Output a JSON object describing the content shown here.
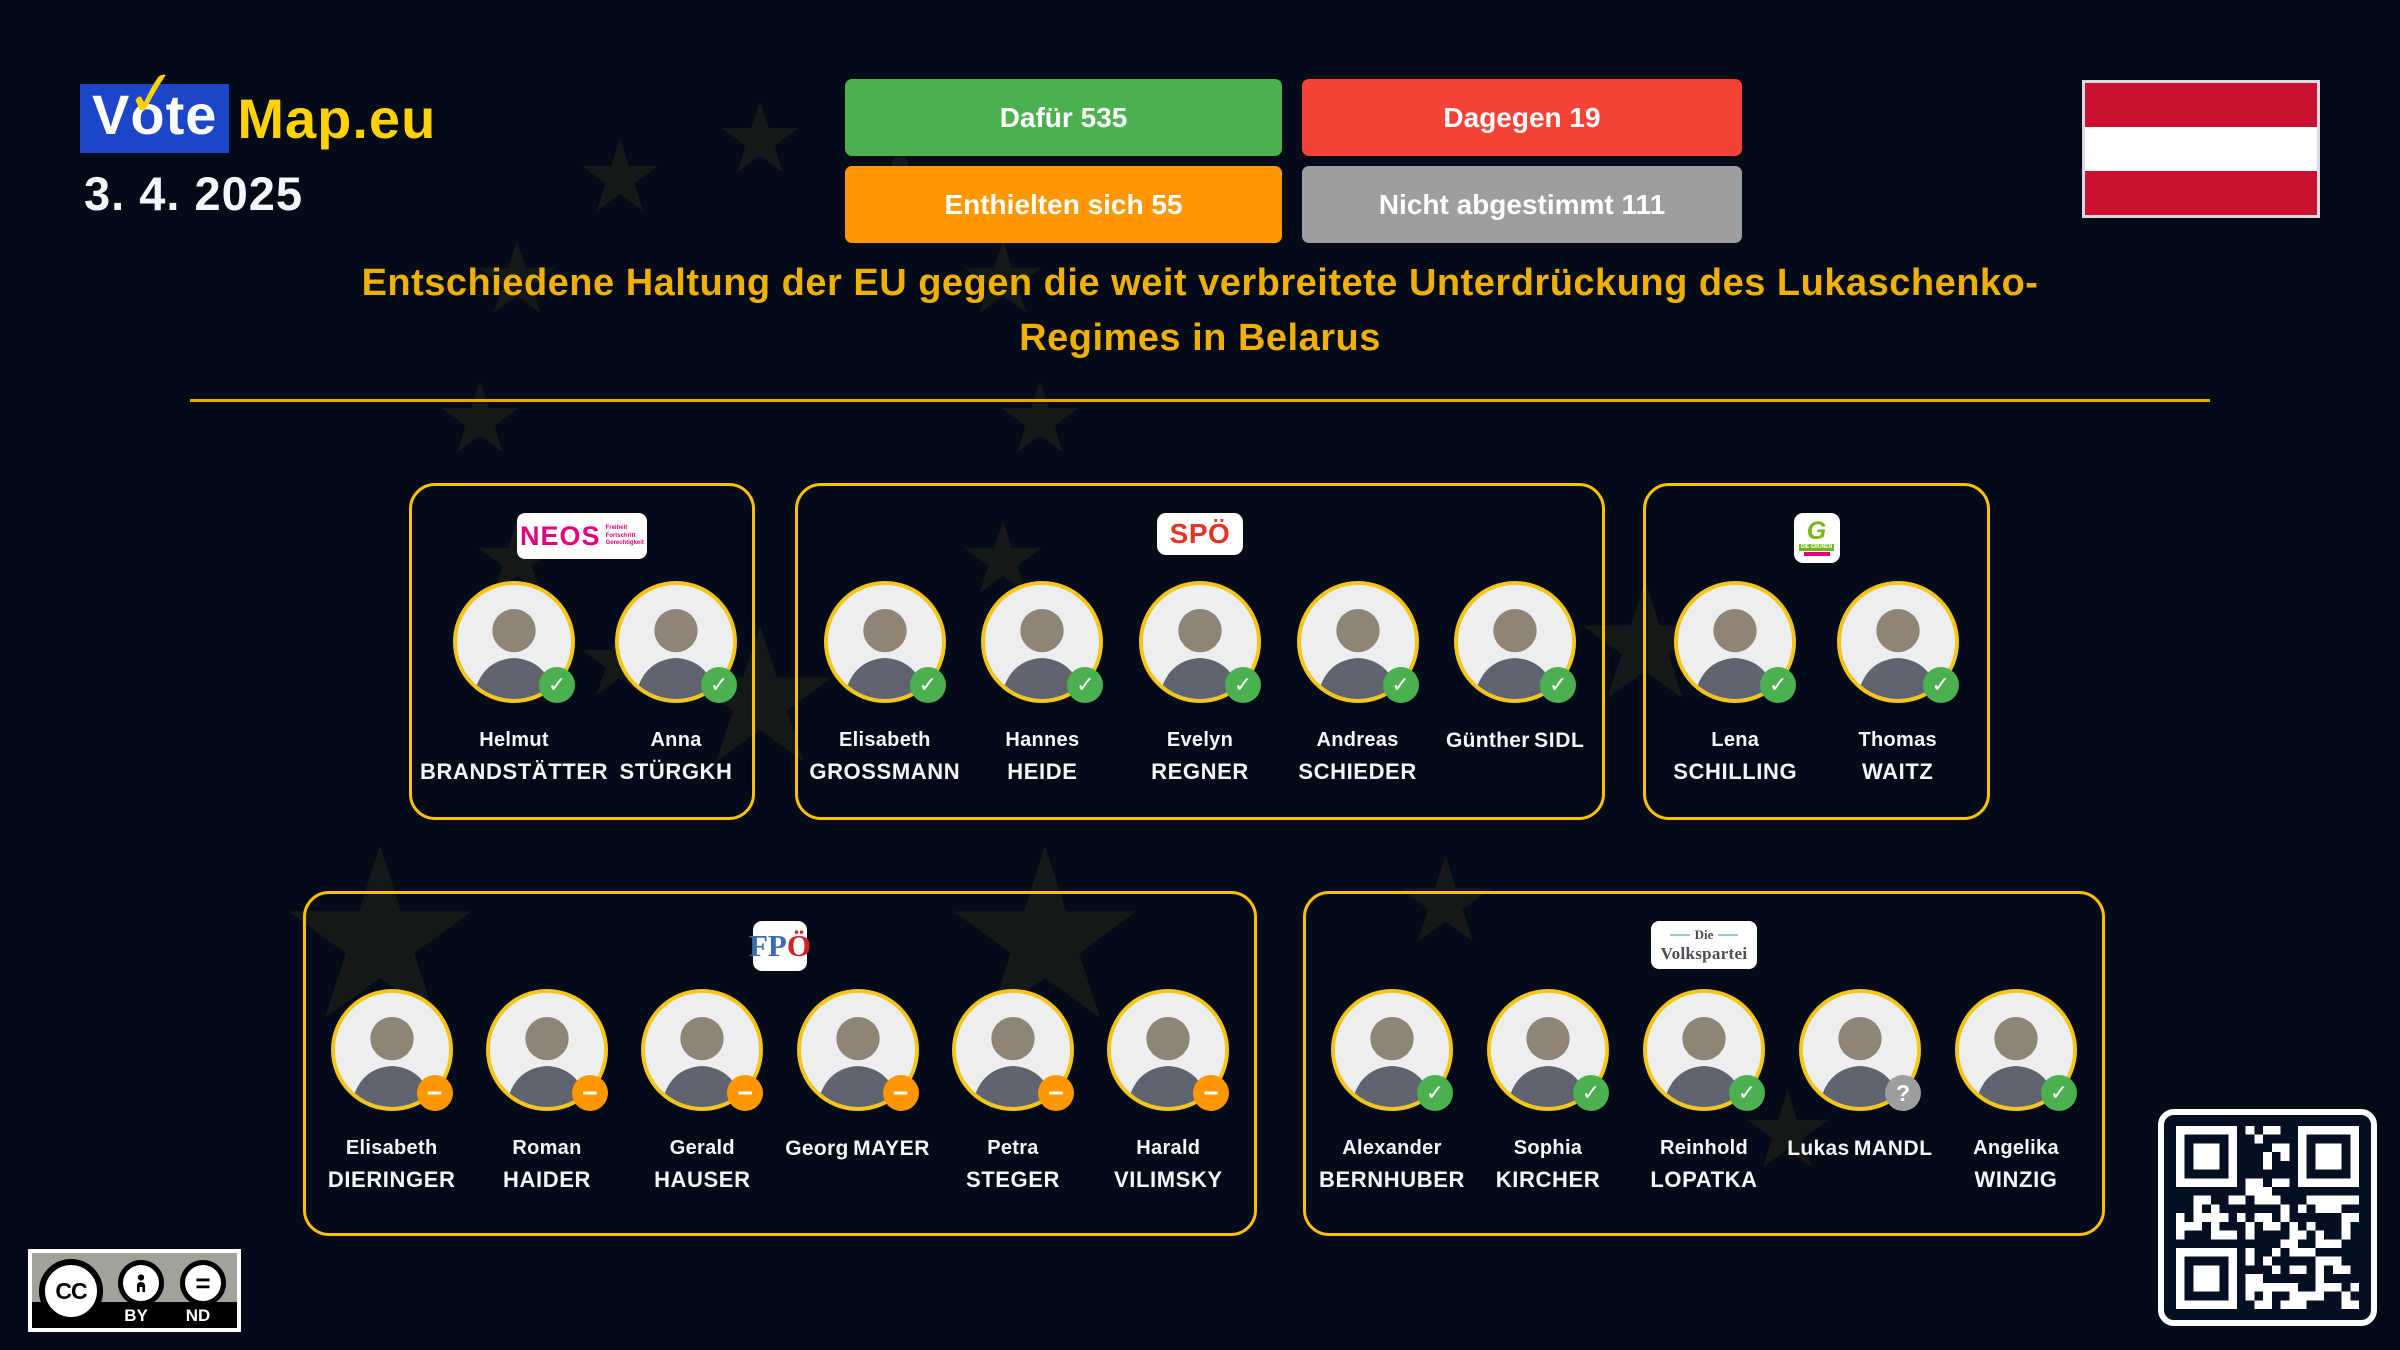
{
  "colors": {
    "background": "#030b19",
    "accent_yellow": "#fcc200",
    "brand_blue": "#1b46c8",
    "brand_yellow": "#ffd200",
    "title_yellow": "#f0b000",
    "for_green": "#4caf50",
    "against_red": "#f44336",
    "abstain_orange": "#ff9800",
    "novote_gray": "#9e9e9e"
  },
  "header": {
    "logo_vote_v": "V",
    "logo_vote_o": "o",
    "logo_vote_te": "te",
    "logo_check": "✓",
    "logo_map": "Map.eu",
    "date": "3. 4. 2025",
    "flag_icon": "austria-flag",
    "results": [
      {
        "label": "Dafür 535",
        "color": "#4caf50"
      },
      {
        "label": "Dagegen 19",
        "color": "#f44336"
      },
      {
        "label": "Enthielten sich 55",
        "color": "#ff9800"
      },
      {
        "label": "Nicht abgestimmt 111",
        "color": "#9e9e9e"
      }
    ]
  },
  "title_line1": "Entschiedene Haltung der EU gegen die weit verbreitete Unterdrückung des Lukaschenko-",
  "title_line2": "Regimes in Belarus",
  "icons": {
    "for": "✓",
    "abstain": "−",
    "novote": "?"
  },
  "parties": [
    {
      "name": "NEOS",
      "logo": {
        "text": "NEOS",
        "tagline": [
          "Freiheit",
          "Fortschritt",
          "Gerechtigkeit"
        ]
      },
      "members": [
        {
          "first": "Helmut",
          "last": "BRANDSTÄTTER",
          "vote": "for"
        },
        {
          "first": "Anna",
          "last": "STÜRGKH",
          "vote": "for"
        }
      ]
    },
    {
      "name": "SPÖ",
      "logo": {
        "text": "SPÖ"
      },
      "members": [
        {
          "first": "Elisabeth",
          "last": "GROSSMANN",
          "vote": "for"
        },
        {
          "first": "Hannes",
          "last": "HEIDE",
          "vote": "for"
        },
        {
          "first": "Evelyn",
          "last": "REGNER",
          "vote": "for"
        },
        {
          "first": "Andreas",
          "last": "SCHIEDER",
          "vote": "for"
        },
        {
          "first": "Günther",
          "last": "SIDL",
          "vote": "for"
        }
      ]
    },
    {
      "name": "Die Grünen",
      "logo": {
        "text": "G",
        "bar": "DIE GRÜNEN"
      },
      "members": [
        {
          "first": "Lena",
          "last": "SCHILLING",
          "vote": "for"
        },
        {
          "first": "Thomas",
          "last": "WAITZ",
          "vote": "for"
        }
      ]
    },
    {
      "name": "FPÖ",
      "logo": {
        "text_fp": "FP",
        "text_o": "Ö"
      },
      "members": [
        {
          "first": "Elisabeth",
          "last": "DIERINGER",
          "vote": "abstain"
        },
        {
          "first": "Roman",
          "last": "HAIDER",
          "vote": "abstain"
        },
        {
          "first": "Gerald",
          "last": "HAUSER",
          "vote": "abstain"
        },
        {
          "first": "Georg",
          "last": "MAYER",
          "vote": "abstain"
        },
        {
          "first": "Petra",
          "last": "STEGER",
          "vote": "abstain"
        },
        {
          "first": "Harald",
          "last": "VILIMSKY",
          "vote": "abstain"
        }
      ]
    },
    {
      "name": "Die Volkspartei",
      "logo": {
        "line1": "Die",
        "line2": "Volkspartei"
      },
      "members": [
        {
          "first": "Alexander",
          "last": "BERNHUBER",
          "vote": "for"
        },
        {
          "first": "Sophia",
          "last": "KIRCHER",
          "vote": "for"
        },
        {
          "first": "Reinhold",
          "last": "LOPATKA",
          "vote": "for"
        },
        {
          "first": "Lukas",
          "last": "MANDL",
          "vote": "novote"
        },
        {
          "first": "Angelika",
          "last": "WINZIG",
          "vote": "for"
        }
      ]
    }
  ],
  "footer": {
    "cc_label": "CC",
    "by_label": "BY",
    "nd_label": "ND",
    "qr": "qr-code-icon"
  }
}
